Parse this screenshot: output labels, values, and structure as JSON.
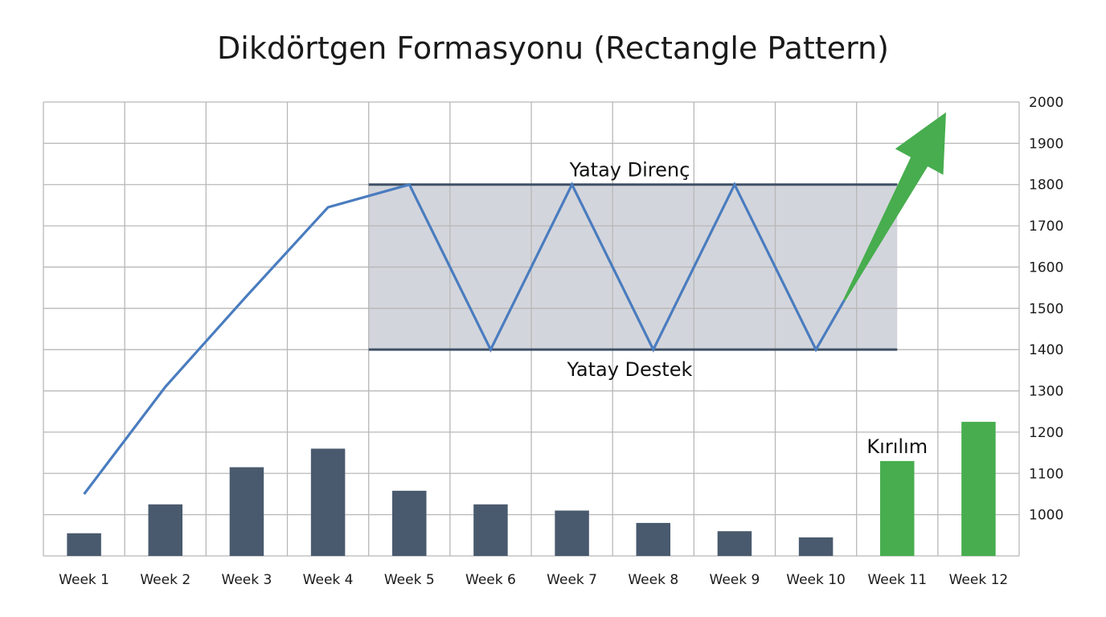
{
  "chart_data": {
    "type": "bar",
    "title": "Dikdörtgen Formasyonu (Rectangle Pattern)",
    "categories": [
      "Week 1",
      "Week 2",
      "Week 3",
      "Week 4",
      "Week 5",
      "Week 6",
      "Week 7",
      "Week 8",
      "Week 9",
      "Week 10",
      "Week 11",
      "Week 12"
    ],
    "y_ticks": [
      1000,
      1100,
      1200,
      1300,
      1400,
      1500,
      1600,
      1700,
      1800,
      1900,
      2000
    ],
    "ylim": [
      900,
      2000
    ],
    "y_axis_position": "right",
    "grid": true,
    "volume_bars": {
      "values": [
        955,
        1025,
        1115,
        1160,
        1058,
        1025,
        1010,
        980,
        960,
        945,
        1130,
        1225
      ],
      "colors": [
        "#4a5a6e",
        "#4a5a6e",
        "#4a5a6e",
        "#4a5a6e",
        "#4a5a6e",
        "#4a5a6e",
        "#4a5a6e",
        "#4a5a6e",
        "#4a5a6e",
        "#4a5a6e",
        "#47ad4e",
        "#47ad4e"
      ]
    },
    "price_line": {
      "color": "#4a7cbf",
      "points": [
        {
          "x": 1,
          "y": 1050
        },
        {
          "x": 2,
          "y": 1310
        },
        {
          "x": 3,
          "y": 1530
        },
        {
          "x": 4,
          "y": 1745
        },
        {
          "x": 5,
          "y": 1800
        },
        {
          "x": 6,
          "y": 1400
        },
        {
          "x": 7,
          "y": 1800
        },
        {
          "x": 8,
          "y": 1400
        },
        {
          "x": 9,
          "y": 1800
        },
        {
          "x": 10,
          "y": 1400
        },
        {
          "x": 10.35,
          "y": 1520
        }
      ]
    },
    "breakout_arrow": {
      "color": "#47ad4e",
      "from": {
        "x": 10.35,
        "y": 1520
      },
      "to": {
        "x": 11.6,
        "y": 1975
      }
    },
    "rectangle": {
      "x_start": 4.5,
      "x_end": 11,
      "resistance": 1800,
      "support": 1400,
      "fill": "#d3d5dc",
      "line_color": "#3f5066"
    },
    "annotations": {
      "resistance_label": "Yatay Direnç",
      "support_label": "Yatay Destek",
      "breakout_label": "Kırılım"
    }
  }
}
